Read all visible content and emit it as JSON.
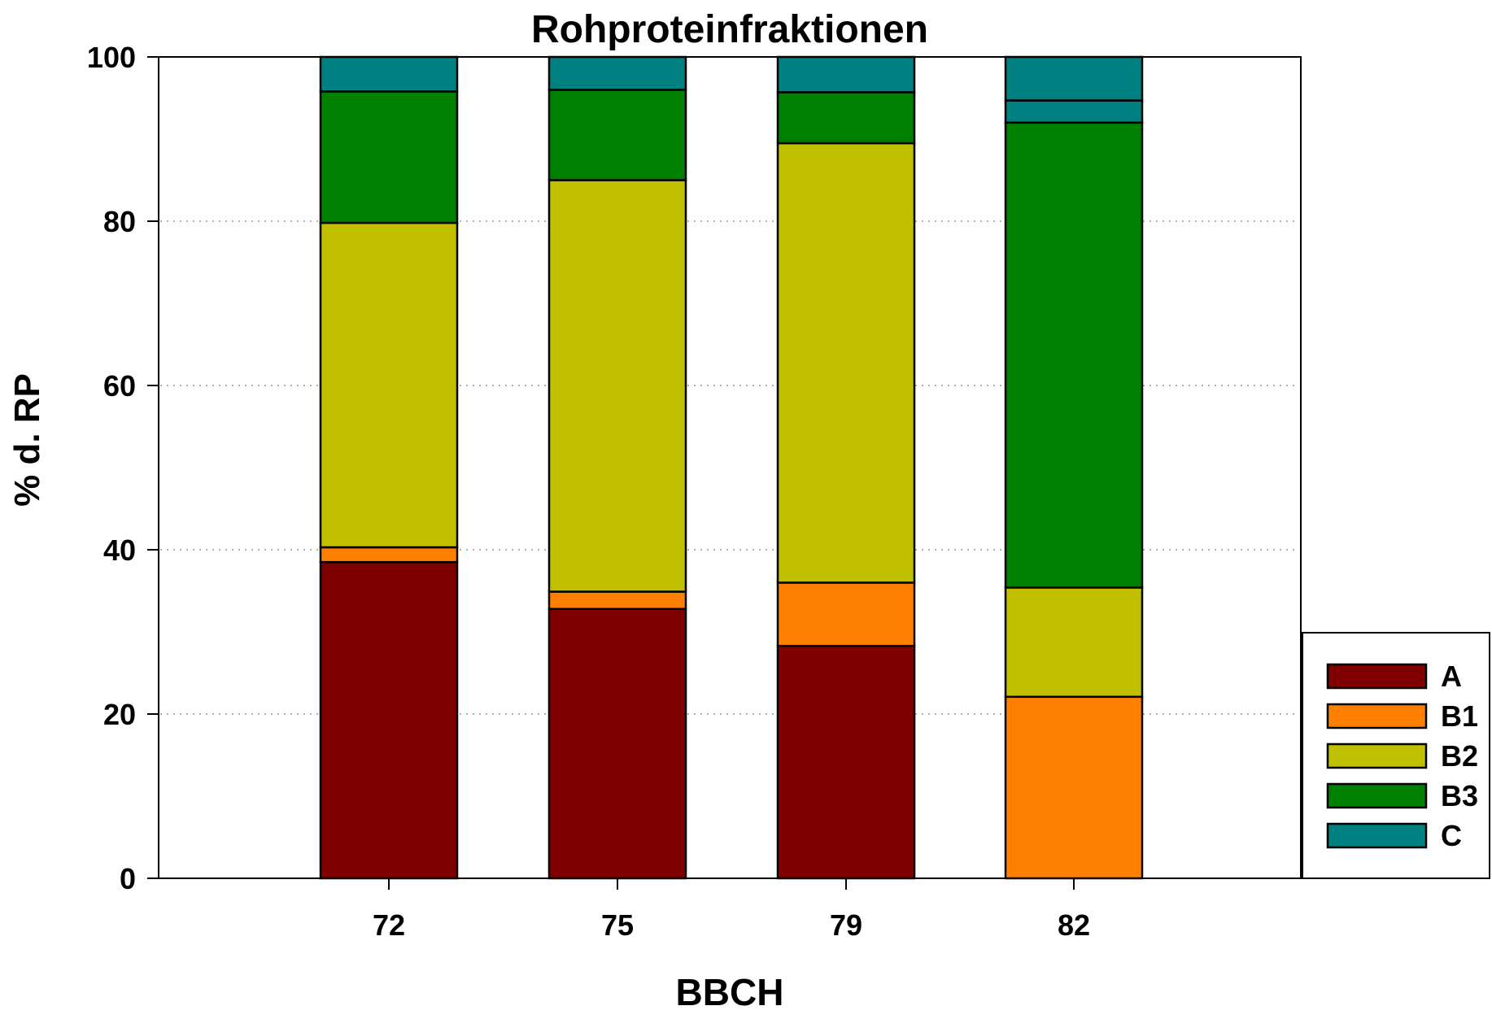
{
  "chart_data": {
    "type": "bar",
    "stacked": true,
    "title": "Rohproteinfraktionen",
    "xlabel": "BBCH",
    "ylabel": "% d. RP",
    "categories": [
      "72",
      "75",
      "79",
      "82"
    ],
    "ylim": [
      0,
      100
    ],
    "yticks": [
      "0",
      "20",
      "40",
      "60",
      "80",
      "100"
    ],
    "grid": "horizontal dotted at 20, 40, 60, 80",
    "legend_position": "right",
    "series": [
      {
        "name": "A",
        "color": "#800000",
        "values": [
          38.5,
          32.8,
          28.3,
          0
        ]
      },
      {
        "name": "B1",
        "color": "#ff8000",
        "values": [
          1.8,
          2.1,
          7.7,
          22.1
        ]
      },
      {
        "name": "B2",
        "color": "#c0c000",
        "values": [
          39.5,
          50.1,
          53.5,
          13.3
        ]
      },
      {
        "name": "B3",
        "color": "#008000",
        "values": [
          16.0,
          11.0,
          6.2,
          56.6
        ]
      },
      {
        "name": "C",
        "color": "#008080",
        "values": [
          4.2,
          4.0,
          4.3,
          2.7
        ]
      }
    ],
    "extra_segments": [
      {
        "category": "82",
        "series": "C",
        "value": 5.3
      }
    ]
  }
}
